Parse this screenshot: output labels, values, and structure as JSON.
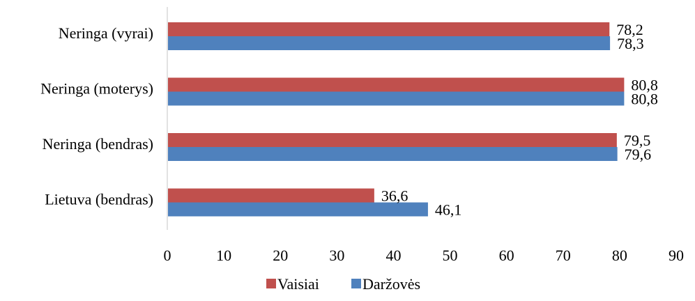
{
  "chart_data": {
    "type": "bar",
    "orientation": "horizontal",
    "categories": [
      "Neringa (vyrai)",
      "Neringa (moterys)",
      "Neringa (bendras)",
      "Lietuva (bendras)"
    ],
    "series": [
      {
        "name": "Vaisiai",
        "color": "#c0504d",
        "values": [
          78.2,
          80.8,
          79.5,
          36.6
        ],
        "labels": [
          "78,2",
          "80,8",
          "79,5",
          "36,6"
        ]
      },
      {
        "name": "Daržovės",
        "color": "#4f81bd",
        "values": [
          78.3,
          80.8,
          79.6,
          46.1
        ],
        "labels": [
          "78,3",
          "80,8",
          "79,6",
          "46,1"
        ]
      }
    ],
    "xlim": [
      0,
      90
    ],
    "xticks": [
      0,
      10,
      20,
      30,
      40,
      50,
      60,
      70,
      80,
      90
    ],
    "xticklabels": [
      "0",
      "10",
      "20",
      "30",
      "40",
      "50",
      "60",
      "70",
      "80",
      "90"
    ],
    "grid": false,
    "legend_position": "bottom"
  }
}
